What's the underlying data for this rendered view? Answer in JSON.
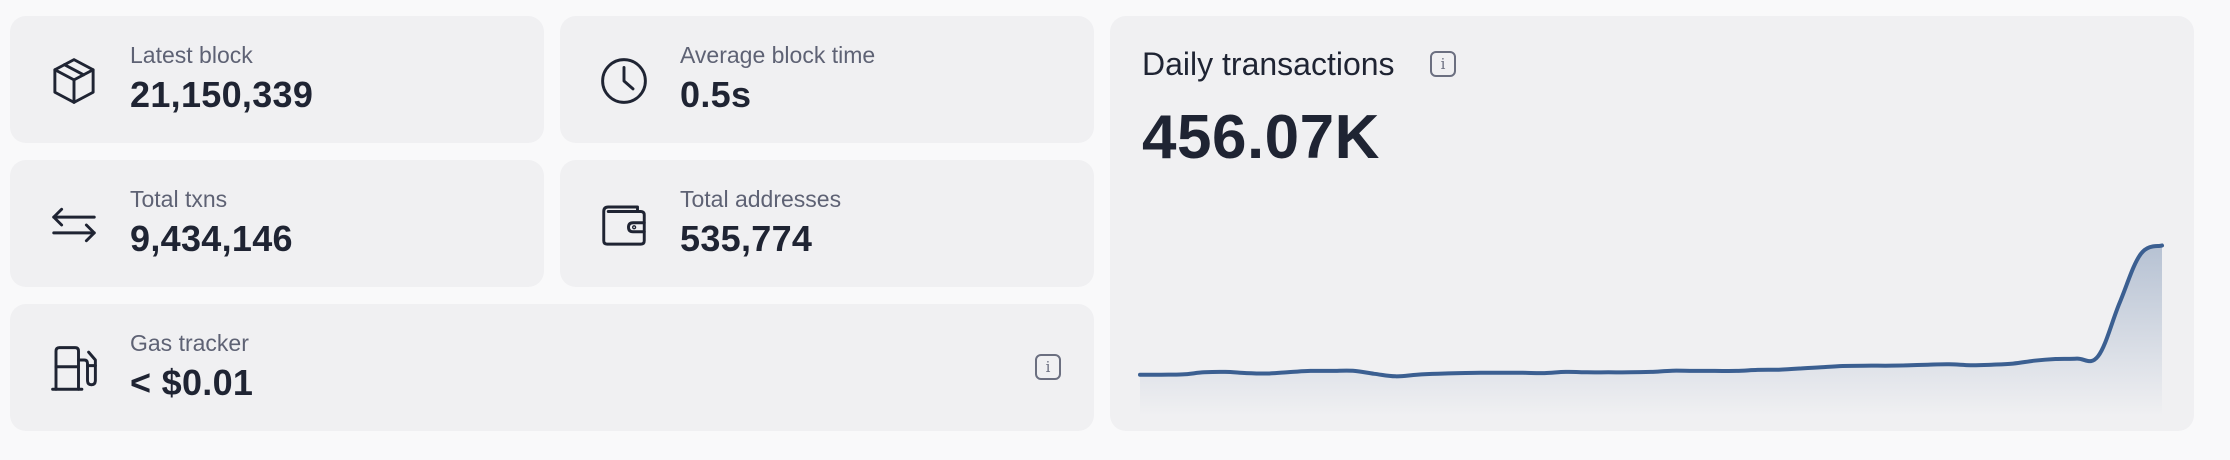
{
  "stats": {
    "latest_block": {
      "label": "Latest block",
      "value": "21,150,339",
      "icon": "block-icon"
    },
    "avg_block_time": {
      "label": "Average block time",
      "value": "0.5s",
      "icon": "clock-icon"
    },
    "total_txns": {
      "label": "Total txns",
      "value": "9,434,146",
      "icon": "transfer-arrows-icon"
    },
    "total_addresses": {
      "label": "Total addresses",
      "value": "535,774",
      "icon": "wallet-icon"
    },
    "gas_tracker": {
      "label": "Gas tracker",
      "value": "< $0.01",
      "icon": "gas-pump-icon",
      "info": "i"
    }
  },
  "daily_transactions": {
    "title": "Daily transactions",
    "value": "456.07K",
    "info": "i"
  },
  "colors": {
    "line": "#3b5f91",
    "card": "#f0f0f2",
    "text": "#1f2433",
    "muted": "#5e6274"
  },
  "chart_data": {
    "type": "area",
    "title": "",
    "xlabel": "",
    "ylabel": "",
    "values": [
      14,
      14,
      14.3,
      16.5,
      17,
      15.7,
      15.3,
      16.7,
      18,
      18,
      18.1,
      15,
      12.3,
      14,
      15,
      15.7,
      16,
      16,
      16,
      15.7,
      17,
      16.5,
      16.5,
      16.5,
      17,
      18.2,
      18,
      18,
      18,
      19,
      19.3,
      20.5,
      21.8,
      23.2,
      23.5,
      23.5,
      23.8,
      24.5,
      25,
      24,
      24.5,
      25.7,
      28.7,
      30.5,
      31,
      33.5,
      89,
      141,
      150
    ]
  }
}
